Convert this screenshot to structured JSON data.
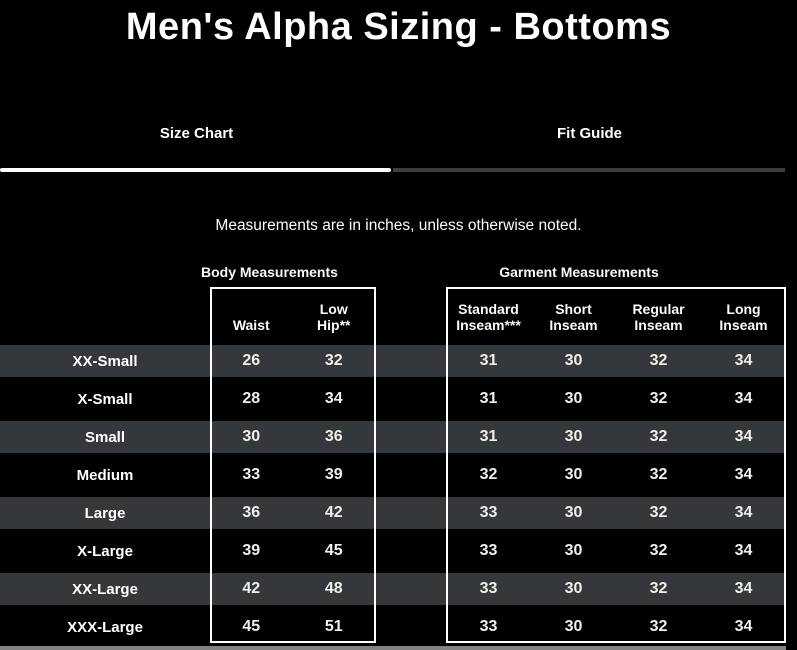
{
  "page": {
    "title": "Men's Alpha Sizing - Bottoms",
    "note": "Measurements are in inches, unless otherwise noted."
  },
  "tabs": [
    {
      "label": "Size Chart",
      "active": true
    },
    {
      "label": "Fit Guide",
      "active": false
    }
  ],
  "sections": {
    "body_label": "Body Measurements",
    "garment_label": "Garment Measurements"
  },
  "colors": {
    "background": "#000000",
    "stripe_row": "#35383a",
    "active_underline": "#ffffff",
    "inactive_underline": "#3d3d3d",
    "box_border": "#ffffff",
    "bottom_strip": "#828282"
  },
  "chart_data": {
    "type": "table",
    "title": "Men's Alpha Sizing - Bottoms",
    "body_columns": [
      "Waist",
      "Low\nHip**"
    ],
    "garment_columns": [
      "Standard\nInseam***",
      "Short\nInseam",
      "Regular\nInseam",
      "Long\nInseam"
    ],
    "rows": [
      {
        "size": "XX-Small",
        "waist": "26",
        "low_hip": "32",
        "standard_inseam": "31",
        "short_inseam": "30",
        "regular_inseam": "32",
        "long_inseam": "34"
      },
      {
        "size": "X-Small",
        "waist": "28",
        "low_hip": "34",
        "standard_inseam": "31",
        "short_inseam": "30",
        "regular_inseam": "32",
        "long_inseam": "34"
      },
      {
        "size": "Small",
        "waist": "30",
        "low_hip": "36",
        "standard_inseam": "31",
        "short_inseam": "30",
        "regular_inseam": "32",
        "long_inseam": "34"
      },
      {
        "size": "Medium",
        "waist": "33",
        "low_hip": "39",
        "standard_inseam": "32",
        "short_inseam": "30",
        "regular_inseam": "32",
        "long_inseam": "34"
      },
      {
        "size": "Large",
        "waist": "36",
        "low_hip": "42",
        "standard_inseam": "33",
        "short_inseam": "30",
        "regular_inseam": "32",
        "long_inseam": "34"
      },
      {
        "size": "X-Large",
        "waist": "39",
        "low_hip": "45",
        "standard_inseam": "33",
        "short_inseam": "30",
        "regular_inseam": "32",
        "long_inseam": "34"
      },
      {
        "size": "XX-Large",
        "waist": "42",
        "low_hip": "48",
        "standard_inseam": "33",
        "short_inseam": "30",
        "regular_inseam": "32",
        "long_inseam": "34"
      },
      {
        "size": "XXX-Large",
        "waist": "45",
        "low_hip": "51",
        "standard_inseam": "33",
        "short_inseam": "30",
        "regular_inseam": "32",
        "long_inseam": "34"
      }
    ]
  }
}
